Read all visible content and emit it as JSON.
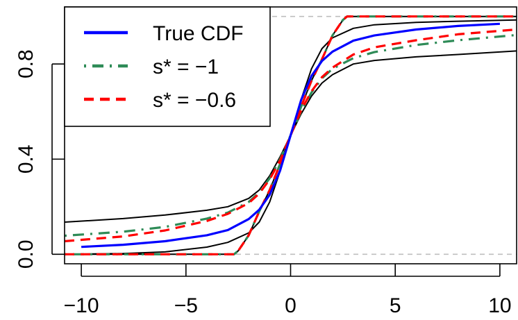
{
  "chart_data": {
    "type": "line",
    "title": "",
    "xlabel": "",
    "ylabel": "",
    "xlim": [
      -10.8,
      10.8
    ],
    "ylim": [
      -0.04,
      1.04
    ],
    "xticks": [
      -10,
      -5,
      0,
      5,
      10
    ],
    "xtick_labels": [
      "−10",
      "−5",
      "0",
      "5",
      "10"
    ],
    "yticks": [
      0.0,
      0.4,
      0.8
    ],
    "ytick_labels": [
      "0.0",
      "0.4",
      "0.8"
    ],
    "reference_lines": [
      0,
      1
    ],
    "grid": false,
    "legend": {
      "position": "top-left",
      "entries": [
        {
          "label": "True CDF",
          "color": "#0000ff",
          "dash": "solid"
        },
        {
          "label": "s* = −1",
          "color": "#2e8b57",
          "dash": "dotdash"
        },
        {
          "label": "s* = −0.6",
          "color": "#ff0000",
          "dash": "dashed"
        }
      ]
    },
    "series": [
      {
        "name": "True CDF",
        "color": "#0000ff",
        "dash": "solid",
        "x": [
          -10,
          -8,
          -6,
          -4,
          -3,
          -2,
          -1.5,
          -1,
          -0.5,
          0,
          0.5,
          1,
          1.5,
          2,
          3,
          4,
          6,
          8,
          10
        ],
        "y": [
          0.031,
          0.04,
          0.055,
          0.08,
          0.102,
          0.148,
          0.187,
          0.25,
          0.352,
          0.5,
          0.648,
          0.75,
          0.813,
          0.852,
          0.898,
          0.92,
          0.945,
          0.96,
          0.969
        ]
      },
      {
        "name": "s* = −1",
        "color": "#2e8b57",
        "dash": "dotdash",
        "x": [
          -10.8,
          -8,
          -6,
          -4,
          -3,
          -2,
          -1.5,
          -1,
          -0.5,
          0,
          0.5,
          1,
          1.5,
          2,
          2.5,
          2.7,
          10.8
        ],
        "y": [
          0.078,
          0.095,
          0.115,
          0.15,
          0.175,
          0.22,
          0.26,
          0.32,
          0.4,
          0.5,
          0.62,
          0.73,
          0.82,
          0.92,
          0.985,
          1.0,
          1.0
        ]
      },
      {
        "name": "s* = −1",
        "color": "#2e8b57",
        "dash": "dotdash",
        "x": [
          -10.8,
          -2.7,
          -2.5,
          -2,
          -1.5,
          -1,
          -0.5,
          0,
          0.5,
          1,
          1.5,
          2,
          3,
          4,
          6,
          8,
          10.8
        ],
        "y": [
          0.0,
          0.0,
          0.015,
          0.08,
          0.18,
          0.27,
          0.38,
          0.5,
          0.6,
          0.68,
          0.74,
          0.78,
          0.825,
          0.85,
          0.88,
          0.9,
          0.922
        ]
      },
      {
        "name": "s* = −0.6",
        "color": "#ff0000",
        "dash": "dashed",
        "x": [
          -10.8,
          -8,
          -6,
          -4,
          -3,
          -2,
          -1.5,
          -1,
          -0.5,
          0,
          0.5,
          1,
          1.5,
          2,
          2.5,
          2.7,
          10.8
        ],
        "y": [
          0.055,
          0.075,
          0.1,
          0.14,
          0.17,
          0.215,
          0.255,
          0.315,
          0.395,
          0.5,
          0.62,
          0.73,
          0.82,
          0.92,
          0.985,
          1.0,
          1.0
        ]
      },
      {
        "name": "s* = −0.6",
        "color": "#ff0000",
        "dash": "dashed",
        "x": [
          -10.8,
          -2.7,
          -2.5,
          -2,
          -1.5,
          -1,
          -0.5,
          0,
          0.5,
          1,
          1.5,
          2,
          3,
          4,
          6,
          8,
          10.8
        ],
        "y": [
          0.0,
          0.0,
          0.015,
          0.08,
          0.18,
          0.27,
          0.38,
          0.5,
          0.605,
          0.685,
          0.745,
          0.785,
          0.84,
          0.87,
          0.9,
          0.925,
          0.945
        ]
      },
      {
        "name": "",
        "color": "#000000",
        "dash": "solid",
        "x": [
          -10.8,
          -8,
          -6,
          -4,
          -3,
          -2,
          -1.5,
          -1,
          -0.5,
          0,
          0.5,
          1,
          1.5,
          2,
          2.5,
          2.7,
          10.8
        ],
        "y": [
          0.135,
          0.15,
          0.165,
          0.185,
          0.2,
          0.235,
          0.27,
          0.33,
          0.41,
          0.5,
          0.62,
          0.73,
          0.82,
          0.92,
          0.985,
          1.0,
          1.0
        ]
      },
      {
        "name": "",
        "color": "#000000",
        "dash": "solid",
        "x": [
          -10.8,
          -2.7,
          -2.5,
          -2,
          -1.5,
          -1,
          -0.5,
          0,
          0.5,
          1,
          1.5,
          2,
          3,
          4,
          6,
          8,
          10.8
        ],
        "y": [
          0.0,
          0.0,
          0.015,
          0.08,
          0.18,
          0.27,
          0.38,
          0.5,
          0.59,
          0.665,
          0.72,
          0.755,
          0.8,
          0.815,
          0.83,
          0.84,
          0.855
        ]
      },
      {
        "name": "",
        "color": "#000000",
        "dash": "solid",
        "x": [
          -10.8,
          -8,
          -6,
          -4,
          -3,
          -2,
          -1.5,
          -1,
          -0.5,
          0,
          0.5,
          1,
          1.5,
          2,
          3,
          4,
          6,
          8,
          10.8
        ],
        "y": [
          0.0,
          0.003,
          0.01,
          0.03,
          0.05,
          0.09,
          0.135,
          0.22,
          0.35,
          0.5,
          0.65,
          0.78,
          0.865,
          0.91,
          0.95,
          0.965,
          0.975,
          0.98,
          0.985
        ]
      }
    ]
  }
}
